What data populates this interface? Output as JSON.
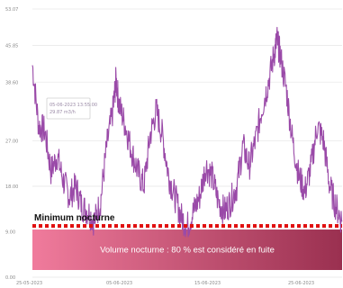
{
  "chart_data": {
    "type": "line",
    "y_ticks": [
      "53.07",
      "45.85",
      "38.60",
      "27.00",
      "18.00",
      "9.00",
      "0.00"
    ],
    "y_tick_values": [
      53.07,
      45.85,
      38.6,
      27.0,
      18.0,
      9.0,
      0.0
    ],
    "x_ticks": [
      "25-05-2023",
      "05-06-2023",
      "15-06-2023",
      "25-06-2023"
    ],
    "ylim": [
      0,
      53.07
    ],
    "x_range": [
      0,
      100
    ],
    "grid": true,
    "series": [
      {
        "color": "#9a4aa8",
        "x": [
          0,
          2,
          4,
          6,
          8,
          10,
          12,
          14,
          16,
          18,
          20,
          22,
          24,
          26,
          27,
          28,
          30,
          32,
          34,
          36,
          38,
          40,
          42,
          44,
          46,
          48,
          50,
          52,
          54,
          56,
          58,
          60,
          62,
          64,
          66,
          68,
          70,
          72,
          74,
          76,
          78,
          79,
          80,
          82,
          84,
          86,
          88,
          90,
          92,
          94,
          96,
          98,
          100
        ],
        "y": [
          42,
          30,
          29,
          21,
          24,
          19,
          16,
          18,
          14,
          13,
          11,
          15,
          26,
          33,
          39,
          34,
          30,
          25,
          21,
          18,
          28,
          33,
          28,
          20,
          16,
          12,
          10,
          13,
          16,
          22,
          20,
          15,
          13,
          15,
          18,
          26,
          22,
          27,
          33,
          38,
          44,
          47,
          44,
          37,
          27,
          20,
          17,
          22,
          30,
          27,
          18,
          14,
          11
        ]
      }
    ],
    "tooltip": {
      "line1": "05-06-2023 13:55:00",
      "line2": "29.87 m3/h"
    },
    "minimum_threshold": 10.5,
    "minimum_label": "Minimum nocturne",
    "band_label": "Volume nocturne : 80 % est considéré en fuite",
    "colors": {
      "line": "#9a4aa8",
      "threshold": "#e01010",
      "band_left": "#f07b9c",
      "band_right": "#9a3050",
      "grid": "#e9e9e9"
    }
  }
}
